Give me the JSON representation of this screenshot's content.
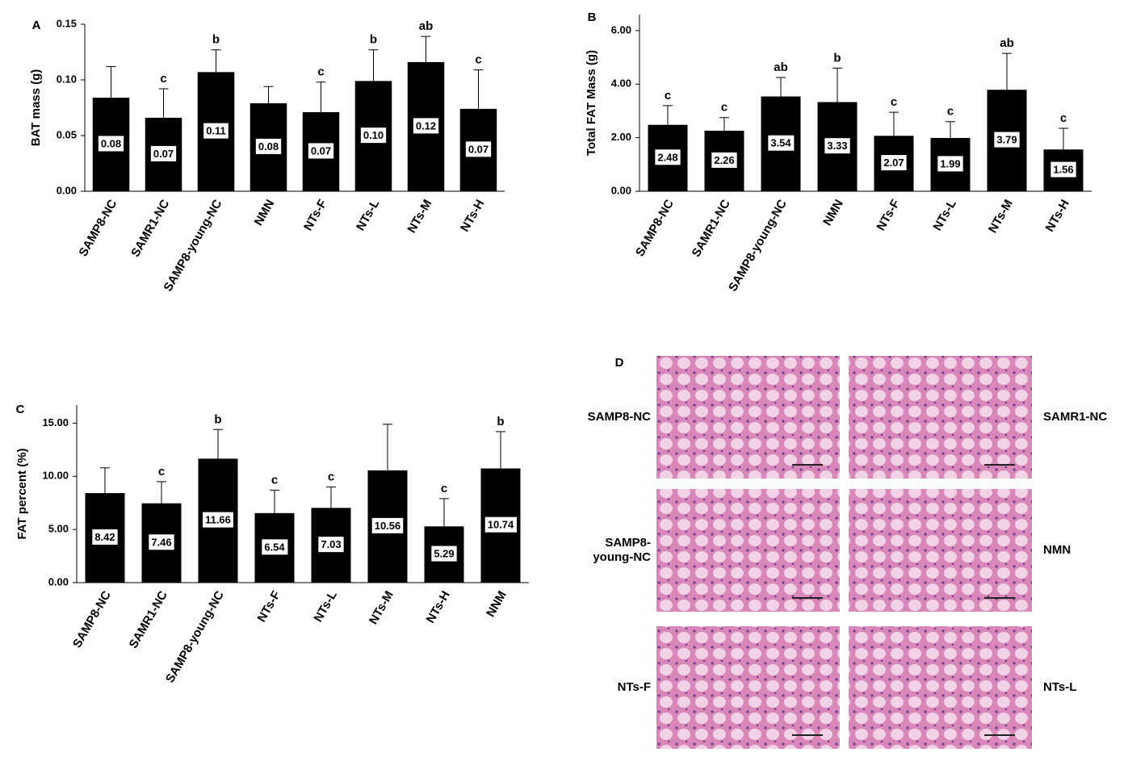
{
  "chart_data": [
    {
      "type": "bar",
      "panel": "A",
      "ylabel": "BAT mass (g)",
      "categories": [
        "SAMP8-NC",
        "SAMR1-NC",
        "SAMP8-young-NC",
        "NMN",
        "NTs-F",
        "NTs-L",
        "NTs-M",
        "NTs-H"
      ],
      "values": [
        0.084,
        0.066,
        0.107,
        0.079,
        0.071,
        0.099,
        0.116,
        0.074
      ],
      "value_labels": [
        "0.08",
        "0.07",
        "0.11",
        "0.08",
        "0.07",
        "0.10",
        "0.12",
        "0.07"
      ],
      "errors": [
        0.028,
        0.026,
        0.02,
        0.015,
        0.027,
        0.028,
        0.023,
        0.035
      ],
      "annotations": [
        null,
        "c",
        "b",
        null,
        "c",
        "b",
        "ab",
        "c"
      ],
      "color": "#000000",
      "ylim": [
        0,
        0.15
      ],
      "yticks": [
        {
          "value": 0,
          "label": "0.00"
        },
        {
          "value": 0.05,
          "label": "0.05"
        },
        {
          "value": 0.1,
          "label": "0.10"
        },
        {
          "value": 0.15,
          "label": "0.15"
        }
      ]
    },
    {
      "type": "bar",
      "panel": "B",
      "ylabel": "Total FAT Mass (g)",
      "categories": [
        "SAMP8-NC",
        "SAMR1-NC",
        "SAMP8-young-NC",
        "NMN",
        "NTs-F",
        "NTs-L",
        "NTs-M",
        "NTs-H"
      ],
      "values": [
        2.48,
        2.26,
        3.54,
        3.33,
        2.07,
        1.99,
        3.79,
        1.56
      ],
      "errors": [
        0.72,
        0.49,
        0.71,
        1.27,
        0.88,
        0.61,
        1.36,
        0.79
      ],
      "annotations": [
        "c",
        "c",
        "ab",
        "b",
        "c",
        "c",
        "ab",
        "c"
      ],
      "color": "#000000",
      "ylim": [
        0,
        6.6
      ],
      "yticks": [
        {
          "value": 0,
          "label": "0.00"
        },
        {
          "value": 2,
          "label": "2.00"
        },
        {
          "value": 4,
          "label": "4.00"
        },
        {
          "value": 6,
          "label": "6.00"
        }
      ]
    },
    {
      "type": "bar",
      "panel": "C",
      "ylabel": "FAT percent (%)",
      "categories": [
        "SAMP8-NC",
        "SAMR1-NC",
        "SAMP8-young-NC",
        "NTs-F",
        "NTs-L",
        "NTs-M",
        "NTs-H",
        "NNM"
      ],
      "values": [
        8.42,
        7.46,
        11.66,
        6.54,
        7.03,
        10.56,
        5.29,
        10.74
      ],
      "errors": [
        2.38,
        2.04,
        2.74,
        2.16,
        1.97,
        4.34,
        2.61,
        3.46
      ],
      "annotations": [
        null,
        "c",
        "b",
        "c",
        "c",
        null,
        "c",
        "b"
      ],
      "color": "#000000",
      "ylim": [
        0,
        16.7
      ],
      "yticks": [
        {
          "value": 0,
          "label": "0.00"
        },
        {
          "value": 5,
          "label": "5.00"
        },
        {
          "value": 10,
          "label": "10.00"
        },
        {
          "value": 15,
          "label": "15.00"
        }
      ]
    }
  ],
  "panel_d": {
    "label": "D",
    "images": [
      {
        "lines": [
          "SAMP8-NC"
        ]
      },
      {
        "lines": [
          "SAMR1-NC"
        ]
      },
      {
        "lines": [
          "SAMP8-",
          "young-NC"
        ]
      },
      {
        "lines": [
          "NMN"
        ]
      },
      {
        "lines": [
          "NTs-F"
        ]
      },
      {
        "lines": [
          "NTs-L"
        ]
      }
    ]
  }
}
